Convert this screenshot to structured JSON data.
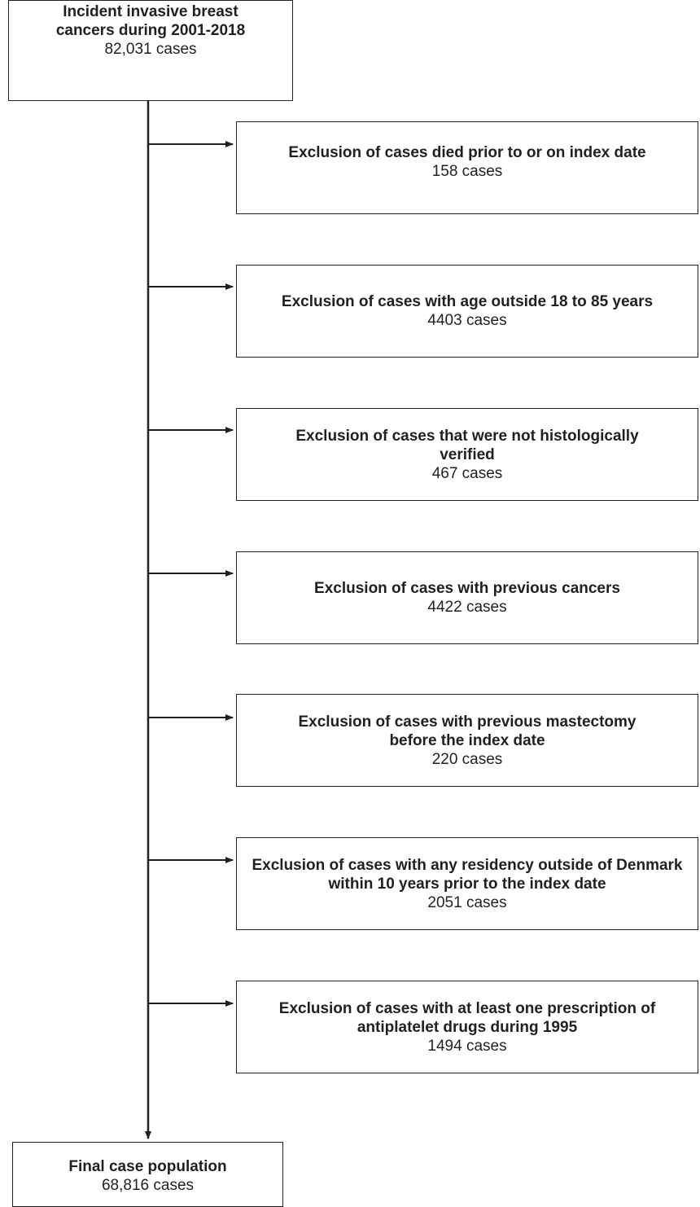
{
  "start": {
    "title": "Incident invasive breast cancers during 2001-2018",
    "count": "82,031 cases"
  },
  "exclusions": [
    {
      "title": "Exclusion of cases died prior to or on index date",
      "count": "158 cases"
    },
    {
      "title": "Exclusion of cases with age outside 18 to 85 years",
      "count": "4403 cases"
    },
    {
      "title": "Exclusion of cases that were not histologically verified",
      "count": "467 cases"
    },
    {
      "title": "Exclusion of cases with previous cancers",
      "count": "4422 cases"
    },
    {
      "title": "Exclusion of cases with previous mastectomy before the index date",
      "count": "220 cases"
    },
    {
      "title": "Exclusion of cases with any residency outside of Denmark within 10 years prior to the index date",
      "count": "2051 cases"
    },
    {
      "title": "Exclusion of cases with at least one prescription of antiplatelet drugs during 1995",
      "count": "1494 cases"
    }
  ],
  "final": {
    "title": "Final case population",
    "count": "68,816 cases"
  }
}
